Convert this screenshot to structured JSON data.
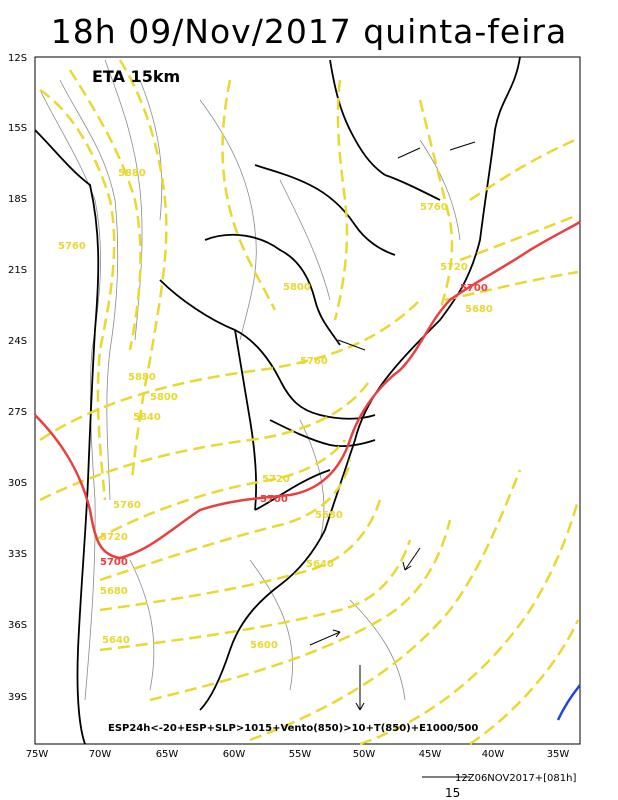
{
  "title": "18h 09/Nov/2017 quinta-feira",
  "model_label": "ETA 15km",
  "footer_caption": "ESP24h<-20+ESP+SLP>1015+Vento(850)>10+T(850)+E1000/500",
  "footer_time": "12Z06NOV2017+[081h]",
  "footer_scale": "15",
  "lat_labels": [
    "12S",
    "15S",
    "18S",
    "21S",
    "24S",
    "27S",
    "30S",
    "33S",
    "36S",
    "39S"
  ],
  "lon_labels": [
    "75W",
    "70W",
    "65W",
    "60W",
    "55W",
    "50W",
    "45W",
    "40W",
    "35W"
  ],
  "contour_labels_yellow": [
    {
      "text": "5880"
    },
    {
      "text": "5760"
    },
    {
      "text": "5800"
    },
    {
      "text": "5760"
    },
    {
      "text": "5720"
    },
    {
      "text": "5680"
    },
    {
      "text": "5760"
    },
    {
      "text": "5880"
    },
    {
      "text": "5800"
    },
    {
      "text": "5840"
    },
    {
      "text": "5720"
    },
    {
      "text": "5760"
    },
    {
      "text": "5720"
    },
    {
      "text": "5680"
    },
    {
      "text": "5640"
    },
    {
      "text": "5680"
    },
    {
      "text": "5640"
    },
    {
      "text": "5600"
    }
  ],
  "contour_labels_red": [
    {
      "text": "5700"
    },
    {
      "text": "5700"
    },
    {
      "text": "5700"
    }
  ],
  "colors": {
    "yellow_contour": "#e8d832",
    "red_contour": "#e84040",
    "blue_contour": "#2244dd",
    "borders": "#000000",
    "topo": "#8a8a8a"
  }
}
